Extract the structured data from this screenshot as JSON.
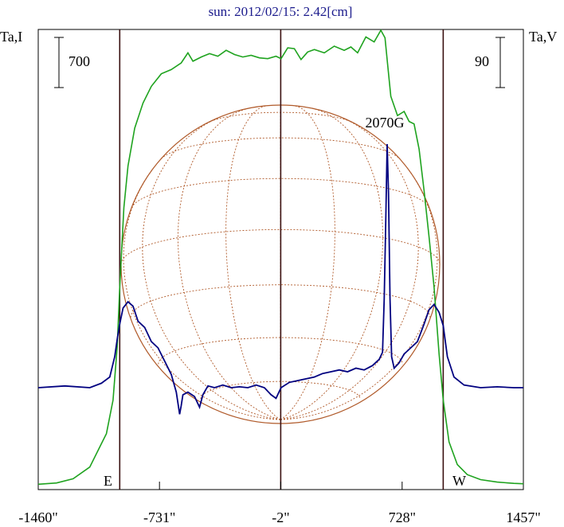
{
  "chart_data": {
    "type": "line",
    "title": "sun: 2012/02/15: 2.42[cm]",
    "left_axis_label": "Ta,I",
    "right_axis_label": "Ta,V",
    "left_scale_bar_value": "700",
    "right_scale_bar_value": "90",
    "x_ticks": [
      {
        "value": -1460,
        "label": "-1460\""
      },
      {
        "value": -731,
        "label": "-731\""
      },
      {
        "value": -2,
        "label": "-2\""
      },
      {
        "value": 728,
        "label": "728\""
      },
      {
        "value": 1457,
        "label": "1457\""
      }
    ],
    "xlim": [
      -1460,
      1457
    ],
    "east_label": "E",
    "west_label": "W",
    "limb_x": [
      -970,
      975
    ],
    "center_x": -2,
    "annotation": {
      "text": "2070G",
      "x": 640
    },
    "colors": {
      "intensity": "#1fa31f",
      "polarization": "#000080",
      "disk": "#b05a2a",
      "limb_lines": "#3a1010",
      "title": "#1a1a8c"
    },
    "series": [
      {
        "name": "I",
        "scale": "left",
        "points": [
          [
            -1460,
            45
          ],
          [
            -1350,
            60
          ],
          [
            -1250,
            110
          ],
          [
            -1150,
            250
          ],
          [
            -1050,
            650
          ],
          [
            -1010,
            1050
          ],
          [
            -985,
            1700
          ],
          [
            -970,
            2400
          ],
          [
            -945,
            3350
          ],
          [
            -920,
            3850
          ],
          [
            -880,
            4300
          ],
          [
            -830,
            4600
          ],
          [
            -780,
            4800
          ],
          [
            -720,
            4950
          ],
          [
            -660,
            5000
          ],
          [
            -600,
            5080
          ],
          [
            -560,
            5200
          ],
          [
            -530,
            5100
          ],
          [
            -480,
            5150
          ],
          [
            -430,
            5190
          ],
          [
            -380,
            5160
          ],
          [
            -330,
            5230
          ],
          [
            -280,
            5180
          ],
          [
            -230,
            5150
          ],
          [
            -180,
            5170
          ],
          [
            -130,
            5140
          ],
          [
            -80,
            5130
          ],
          [
            -30,
            5160
          ],
          [
            0,
            5130
          ],
          [
            40,
            5260
          ],
          [
            80,
            5250
          ],
          [
            120,
            5120
          ],
          [
            160,
            5210
          ],
          [
            200,
            5240
          ],
          [
            260,
            5200
          ],
          [
            320,
            5280
          ],
          [
            380,
            5230
          ],
          [
            420,
            5270
          ],
          [
            460,
            5200
          ],
          [
            510,
            5390
          ],
          [
            560,
            5330
          ],
          [
            600,
            5470
          ],
          [
            625,
            5380
          ],
          [
            640,
            5080
          ],
          [
            660,
            4680
          ],
          [
            700,
            4450
          ],
          [
            740,
            4500
          ],
          [
            770,
            4380
          ],
          [
            800,
            4350
          ],
          [
            830,
            4050
          ],
          [
            860,
            3550
          ],
          [
            890,
            3000
          ],
          [
            920,
            2400
          ],
          [
            950,
            1600
          ],
          [
            975,
            1050
          ],
          [
            1010,
            550
          ],
          [
            1060,
            280
          ],
          [
            1120,
            160
          ],
          [
            1200,
            100
          ],
          [
            1300,
            70
          ],
          [
            1400,
            55
          ],
          [
            1457,
            50
          ]
        ]
      },
      {
        "name": "V",
        "scale": "right",
        "points": [
          [
            -1460,
            0
          ],
          [
            -1300,
            2
          ],
          [
            -1150,
            0
          ],
          [
            -1080,
            5
          ],
          [
            -1030,
            12
          ],
          [
            -1000,
            35
          ],
          [
            -985,
            55
          ],
          [
            -970,
            72
          ],
          [
            -950,
            90
          ],
          [
            -920,
            97
          ],
          [
            -890,
            92
          ],
          [
            -860,
            75
          ],
          [
            -820,
            68
          ],
          [
            -780,
            52
          ],
          [
            -740,
            45
          ],
          [
            -700,
            30
          ],
          [
            -660,
            15
          ],
          [
            -630,
            -5
          ],
          [
            -610,
            -30
          ],
          [
            -600,
            -20
          ],
          [
            -590,
            -8
          ],
          [
            -560,
            -5
          ],
          [
            -520,
            -10
          ],
          [
            -490,
            -22
          ],
          [
            -470,
            -8
          ],
          [
            -440,
            2
          ],
          [
            -400,
            0
          ],
          [
            -350,
            3
          ],
          [
            -300,
            0
          ],
          [
            -250,
            1
          ],
          [
            -200,
            0
          ],
          [
            -150,
            3
          ],
          [
            -100,
            0
          ],
          [
            -60,
            -8
          ],
          [
            -30,
            -12
          ],
          [
            0,
            0
          ],
          [
            50,
            6
          ],
          [
            100,
            8
          ],
          [
            150,
            10
          ],
          [
            200,
            12
          ],
          [
            250,
            16
          ],
          [
            300,
            18
          ],
          [
            350,
            20
          ],
          [
            400,
            18
          ],
          [
            450,
            22
          ],
          [
            500,
            20
          ],
          [
            550,
            25
          ],
          [
            590,
            32
          ],
          [
            610,
            40
          ],
          [
            620,
            100
          ],
          [
            630,
            190
          ],
          [
            638,
            275
          ],
          [
            646,
            220
          ],
          [
            655,
            100
          ],
          [
            665,
            35
          ],
          [
            680,
            22
          ],
          [
            710,
            28
          ],
          [
            740,
            38
          ],
          [
            780,
            45
          ],
          [
            820,
            52
          ],
          [
            860,
            72
          ],
          [
            890,
            88
          ],
          [
            920,
            94
          ],
          [
            950,
            85
          ],
          [
            975,
            70
          ],
          [
            1000,
            35
          ],
          [
            1040,
            12
          ],
          [
            1100,
            3
          ],
          [
            1200,
            0
          ],
          [
            1300,
            1
          ],
          [
            1400,
            0
          ],
          [
            1457,
            0
          ]
        ]
      }
    ],
    "grid": false,
    "legend": "none"
  }
}
